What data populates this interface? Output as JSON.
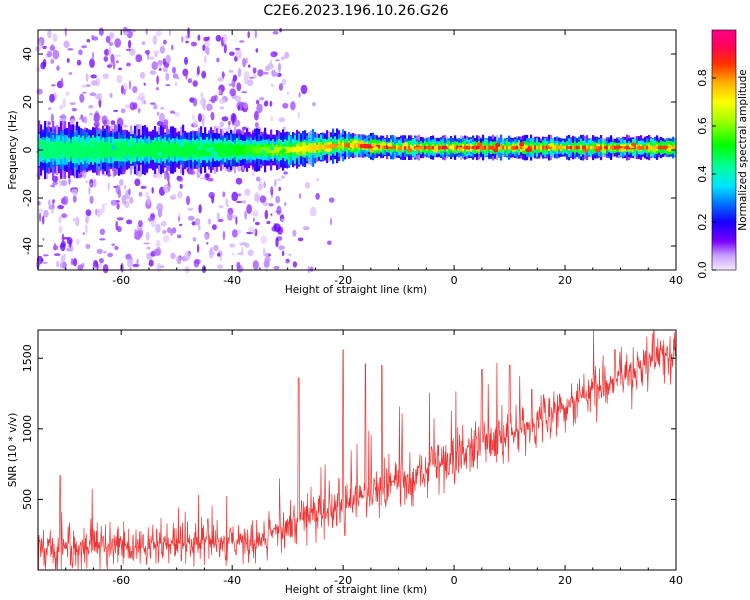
{
  "title": "C2E6.2023.196.10.26.G26",
  "chart_data": [
    {
      "type": "heatmap",
      "xlabel": "Height of straight line (km)",
      "ylabel": "Frequency (Hz)",
      "xlim": [
        -75,
        40
      ],
      "ylim": [
        -50,
        50
      ],
      "xticks": [
        "-60",
        "-40",
        "-20",
        "0",
        "20",
        "40"
      ],
      "yticks": [
        "40",
        "20",
        "0",
        "-20",
        "-40"
      ],
      "colorbar": {
        "label": "Normalized spectral amplitude",
        "range": [
          0,
          1
        ],
        "ticks": [
          "0.0",
          "0.2",
          "0.4",
          "0.6",
          "0.8"
        ],
        "colormap": "gist_ncar_like"
      },
      "description_points": {
        "band_center_hz": [
          [
            -75,
            0
          ],
          [
            -30,
            0
          ],
          [
            -20,
            2
          ],
          [
            -10,
            1
          ],
          [
            0,
            1
          ],
          [
            40,
            1
          ]
        ],
        "band_halfwidth_hz": [
          [
            -75,
            7
          ],
          [
            -30,
            5
          ],
          [
            -12,
            3
          ],
          [
            -8,
            3
          ],
          [
            40,
            3
          ]
        ],
        "peak_amplitude": [
          [
            -75,
            0.45
          ],
          [
            -40,
            0.5
          ],
          [
            -25,
            0.75
          ],
          [
            -15,
            0.9
          ],
          [
            -10,
            0.95
          ],
          [
            5,
            0.95
          ],
          [
            17,
            0.9
          ],
          [
            40,
            0.85
          ]
        ],
        "scatter_noise_region_km": [
          -75,
          -30
        ]
      }
    },
    {
      "type": "line",
      "xlabel": "Height of straight line (km)",
      "ylabel": "SNR (10 * v/v)",
      "xlim": [
        -75,
        40
      ],
      "ylim": [
        0,
        1700
      ],
      "xticks": [
        "-60",
        "-40",
        "-20",
        "0",
        "20",
        "40"
      ],
      "yticks": [
        "500",
        "1000",
        "1500"
      ],
      "series": [
        {
          "color": "#ee3333",
          "envelope_baseline": [
            [
              -75,
              150
            ],
            [
              -35,
              200
            ],
            [
              -30,
              330
            ],
            [
              -20,
              450
            ],
            [
              -10,
              650
            ],
            [
              0,
              800
            ],
            [
              10,
              950
            ],
            [
              20,
              1150
            ],
            [
              30,
              1380
            ],
            [
              40,
              1540
            ]
          ],
          "spikes": [
            [
              -71,
              670
            ],
            [
              -28,
              1360
            ],
            [
              -20,
              1560
            ],
            [
              -16,
              1460
            ],
            [
              -13,
              1450
            ],
            [
              5,
              1420
            ],
            [
              10,
              1450
            ],
            [
              14,
              1280
            ],
            [
              29,
              1560
            ],
            [
              36,
              1700
            ]
          ]
        }
      ]
    }
  ]
}
